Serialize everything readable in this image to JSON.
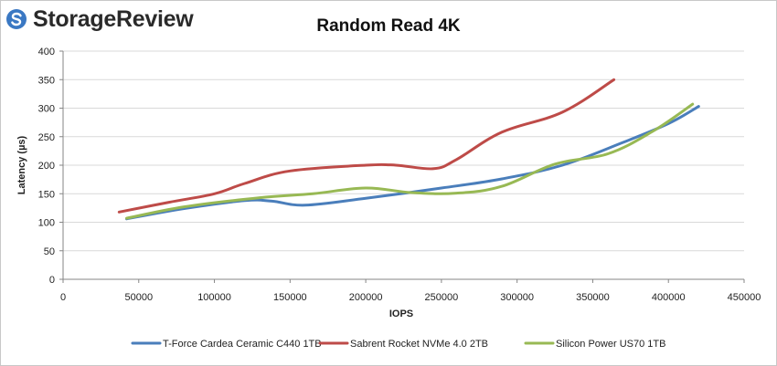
{
  "brand": {
    "name": "StorageReview",
    "logo_color": "#3a78c3"
  },
  "chart_data": {
    "type": "line",
    "title": "Random Read 4K",
    "xlabel": "IOPS",
    "ylabel": "Latency (µs)",
    "xlim": [
      0,
      450000
    ],
    "ylim": [
      0,
      400
    ],
    "xticks": [
      "0",
      "50000",
      "100000",
      "150000",
      "200000",
      "250000",
      "300000",
      "350000",
      "400000",
      "450000"
    ],
    "yticks": [
      "0",
      "50",
      "100",
      "150",
      "200",
      "250",
      "300",
      "350",
      "400"
    ],
    "grid": "horizontal",
    "legend_position": "bottom",
    "series": [
      {
        "name": "T-Force Cardea Ceramic C440 1TB",
        "color": "#4a7ebb",
        "x": [
          42000,
          80000,
          120000,
          138000,
          160000,
          200000,
          250000,
          290000,
          330000,
          370000,
          400000,
          420000
        ],
        "y": [
          106,
          124,
          138,
          137,
          130,
          142,
          160,
          176,
          200,
          240,
          273,
          303
        ]
      },
      {
        "name": "Sabrent Rocket NVMe 4.0 2TB",
        "color": "#be4b48",
        "x": [
          37000,
          70000,
          100000,
          120000,
          150000,
          200000,
          220000,
          245000,
          260000,
          290000,
          330000,
          364000
        ],
        "y": [
          118,
          135,
          150,
          168,
          190,
          200,
          200,
          194,
          210,
          258,
          293,
          350
        ]
      },
      {
        "name": "Silicon Power US70 1TB",
        "color": "#98b954",
        "x": [
          42000,
          80000,
          130000,
          165000,
          200000,
          230000,
          260000,
          290000,
          325000,
          360000,
          390000,
          416000
        ],
        "y": [
          107,
          127,
          143,
          150,
          160,
          152,
          151,
          163,
          202,
          220,
          260,
          307
        ]
      }
    ]
  }
}
